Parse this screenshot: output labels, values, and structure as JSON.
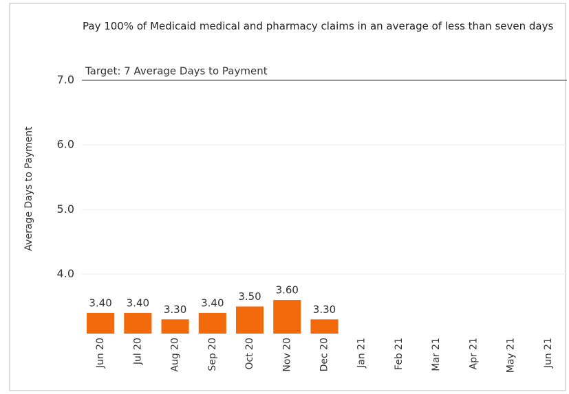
{
  "chart_data": {
    "type": "bar",
    "title": "Pay 100% of Medicaid medical and pharmacy claims in an average of less than seven days",
    "y_label": "Average Days to Payment",
    "categories": [
      "Jun 20",
      "Jul 20",
      "Aug 20",
      "Sep 20",
      "Oct 20",
      "Nov 20",
      "Dec 20",
      "Jan 21",
      "Feb 21",
      "Mar 21",
      "Apr 21",
      "May 21",
      "Jun 21"
    ],
    "values": [
      3.4,
      3.4,
      3.3,
      3.4,
      3.5,
      3.6,
      3.3,
      null,
      null,
      null,
      null,
      null,
      null
    ],
    "value_labels": [
      "3.40",
      "3.40",
      "3.30",
      "3.40",
      "3.50",
      "3.60",
      "3.30",
      null,
      null,
      null,
      null,
      null,
      null
    ],
    "color": "#f36a0c",
    "ylim": [
      3.08,
      7.0
    ],
    "yticks": [
      {
        "value": 4,
        "label": "4.0"
      },
      {
        "value": 5,
        "label": "5.0"
      },
      {
        "value": 6,
        "label": "6.0"
      },
      {
        "value": 7,
        "label": "7.0"
      }
    ],
    "grid": true,
    "target": 7,
    "target_label": "Target: 7 Average Days to Payment"
  }
}
